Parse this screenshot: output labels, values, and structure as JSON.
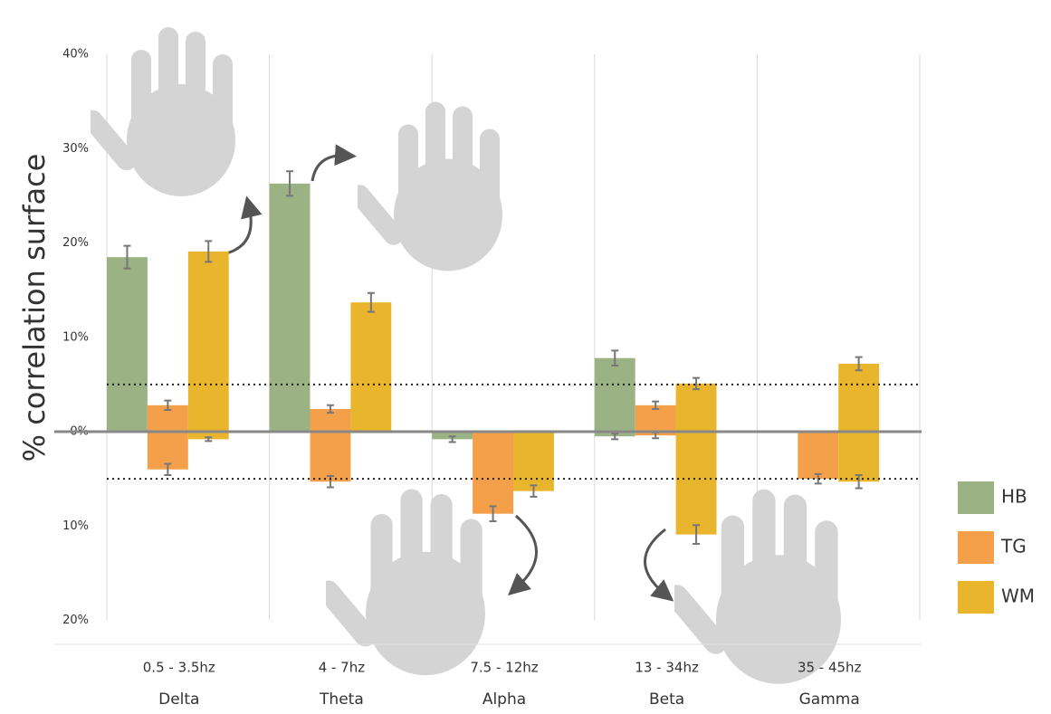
{
  "chart_data": {
    "type": "bar",
    "y_label": "% correlation surface",
    "categories": [
      "Delta",
      "Theta",
      "Alpha",
      "Beta",
      "Gamma"
    ],
    "ranges": [
      "0.5 - 3.5hz",
      "4 - 7hz",
      "7.5 - 12hz",
      "13 - 34hz",
      "35 - 45hz"
    ],
    "series": [
      {
        "name": "HB",
        "color": "#9bb384",
        "values": [
          18.5,
          26.3,
          0,
          7.8,
          0
        ],
        "errors": [
          1.2,
          1.3,
          null,
          0.8,
          null
        ],
        "negative_values": [
          0,
          0,
          -0.8,
          -0.5,
          0
        ],
        "negative_errors": [
          null,
          null,
          0.3,
          0.3,
          null
        ]
      },
      {
        "name": "TG",
        "color": "#f4a04a",
        "values": [
          2.8,
          2.4,
          0,
          2.8,
          0
        ],
        "errors": [
          0.5,
          0.4,
          null,
          0.4,
          null
        ],
        "negative_values": [
          -4.0,
          -5.3,
          -8.7,
          -0.4,
          -5.0
        ],
        "negative_errors": [
          0.6,
          0.6,
          0.8,
          0.3,
          0.5
        ]
      },
      {
        "name": "WM",
        "color": "#e8b52c",
        "values": [
          19.1,
          13.7,
          0,
          5.1,
          7.2
        ],
        "errors": [
          1.1,
          1.0,
          null,
          0.6,
          0.7
        ],
        "negative_values": [
          -0.8,
          0,
          -6.3,
          -10.9,
          -5.3
        ],
        "negative_errors": [
          0.2,
          null,
          0.6,
          1.0,
          0.7
        ]
      }
    ],
    "ylim": [
      -20,
      40
    ],
    "yticks": [
      {
        "value": -20,
        "label": "20%"
      },
      {
        "value": -10,
        "label": "10%"
      },
      {
        "value": 0,
        "label": "0%"
      },
      {
        "value": 10,
        "label": "10%"
      },
      {
        "value": 20,
        "label": "20%"
      },
      {
        "value": 30,
        "label": "30%"
      },
      {
        "value": 40,
        "label": "40%"
      }
    ],
    "threshold_lines": [
      5,
      -5
    ],
    "grid": true,
    "legend": "right"
  }
}
